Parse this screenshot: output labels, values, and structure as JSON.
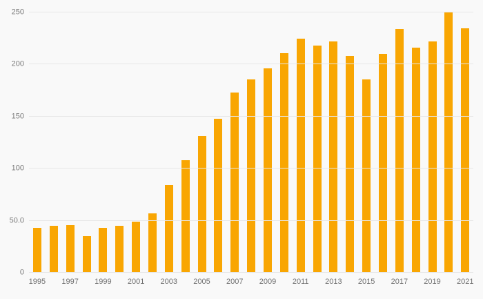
{
  "chart_data": {
    "type": "bar",
    "title": "",
    "xlabel": "",
    "ylabel": "",
    "categories": [
      "1995",
      "1996",
      "1997",
      "1998",
      "1999",
      "2000",
      "2001",
      "2002",
      "2003",
      "2004",
      "2005",
      "2006",
      "2007",
      "2008",
      "2009",
      "2010",
      "2011",
      "2012",
      "2013",
      "2014",
      "2015",
      "2016",
      "2017",
      "2018",
      "2019",
      "2020",
      "2021"
    ],
    "values": [
      43,
      45,
      46,
      35,
      43,
      45,
      49,
      57,
      84,
      108,
      131,
      148,
      173,
      186,
      196,
      211,
      225,
      218,
      222,
      208,
      186,
      210,
      234,
      216,
      222,
      250,
      235
    ],
    "x_tick_labels": [
      "1995",
      "1997",
      "1999",
      "2001",
      "2003",
      "2005",
      "2007",
      "2009",
      "2011",
      "2013",
      "2015",
      "2017",
      "2019",
      "2021"
    ],
    "y_ticks": [
      0,
      50,
      100,
      150,
      200,
      250
    ],
    "y_tick_labels": [
      "0",
      "50.0",
      "100",
      "150",
      "200",
      "250"
    ],
    "ylim": [
      0,
      250
    ],
    "grid": true,
    "legend": "none",
    "colors": {
      "bar": "#f9a602",
      "background": "#f9f9f9",
      "gridline": "#e7e7e7",
      "axis_text": "#7a7a7a"
    }
  }
}
